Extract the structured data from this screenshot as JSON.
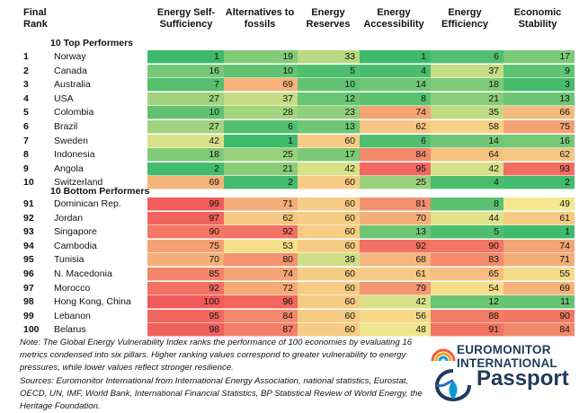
{
  "headers": {
    "rank": "Final\nRank",
    "columns": [
      "Energy Self-\nSufficiency",
      "Alternatives to\nfossils",
      "Energy\nReserves",
      "Energy\nAccessibility",
      "Energy\nEfficiency",
      "Economic\nStability"
    ]
  },
  "groups": {
    "top": "10 Top Performers",
    "bottom": "10 Bottom Performers"
  },
  "chart_data": {
    "type": "table",
    "columns": [
      "Energy Self-Sufficiency",
      "Alternatives to fossils",
      "Energy Reserves",
      "Energy Accessibility",
      "Energy Efficiency",
      "Economic Stability"
    ],
    "top_performers": [
      {
        "rank": "1",
        "country": "Norway",
        "values": [
          1,
          19,
          33,
          1,
          6,
          17
        ]
      },
      {
        "rank": "2",
        "country": "Canada",
        "values": [
          16,
          10,
          5,
          4,
          37,
          9
        ]
      },
      {
        "rank": "3",
        "country": "Australia",
        "values": [
          7,
          69,
          10,
          14,
          18,
          3
        ]
      },
      {
        "rank": "4",
        "country": "USA",
        "values": [
          27,
          37,
          12,
          8,
          21,
          13
        ]
      },
      {
        "rank": "5",
        "country": "Colombia",
        "values": [
          10,
          28,
          23,
          74,
          35,
          66
        ]
      },
      {
        "rank": "6",
        "country": "Brazil",
        "values": [
          27,
          6,
          13,
          62,
          58,
          75
        ]
      },
      {
        "rank": "7",
        "country": "Sweden",
        "values": [
          42,
          1,
          60,
          6,
          14,
          16
        ]
      },
      {
        "rank": "8",
        "country": "Indonesia",
        "values": [
          18,
          25,
          17,
          84,
          64,
          62
        ]
      },
      {
        "rank": "9",
        "country": "Angola",
        "values": [
          2,
          21,
          42,
          95,
          42,
          93
        ]
      },
      {
        "rank": "10",
        "country": "Switzerland",
        "values": [
          69,
          2,
          60,
          25,
          4,
          2
        ]
      }
    ],
    "bottom_performers": [
      {
        "rank": "91",
        "country": "Dominican Rep.",
        "values": [
          99,
          71,
          60,
          81,
          8,
          49
        ]
      },
      {
        "rank": "92",
        "country": "Jordan",
        "values": [
          97,
          62,
          60,
          70,
          44,
          61
        ]
      },
      {
        "rank": "93",
        "country": "Singapore",
        "values": [
          90,
          92,
          60,
          13,
          5,
          1
        ]
      },
      {
        "rank": "94",
        "country": "Cambodia",
        "values": [
          75,
          53,
          60,
          92,
          90,
          74
        ]
      },
      {
        "rank": "95",
        "country": "Tunisia",
        "values": [
          70,
          80,
          39,
          68,
          83,
          71
        ]
      },
      {
        "rank": "96",
        "country": "N. Macedonia",
        "values": [
          85,
          74,
          60,
          61,
          65,
          55
        ]
      },
      {
        "rank": "97",
        "country": "Morocco",
        "values": [
          92,
          72,
          60,
          79,
          54,
          69
        ]
      },
      {
        "rank": "98",
        "country": "Hong Kong, China",
        "values": [
          100,
          96,
          60,
          42,
          12,
          11
        ]
      },
      {
        "rank": "99",
        "country": "Lebanon",
        "values": [
          95,
          84,
          60,
          56,
          88,
          90
        ]
      },
      {
        "rank": "100",
        "country": "Belarus",
        "values": [
          98,
          87,
          60,
          48,
          91,
          84
        ]
      }
    ],
    "colors": {
      "low": "#3fba6b",
      "mid": "#f7e98e",
      "high": "#f15a5a"
    }
  },
  "note": "Note: The Global Energy Vulnerability Index ranks the performance of 100 economies by evaluating 16 metrics condensed into six pillars. Higher ranking values correspond to greater vulnerability to energy pressures, while lower values reflect stronger resilience.",
  "sources": "Sources: Euromonitor International from International Energy Association, national statistics, Eurostat, OECD, UN, IMF, World Bank, International Financial Statistics, BP Statistical Review of World Energy, the Heritage Foundation.",
  "logos": {
    "brand1_line1": "EUROMONITOR",
    "brand1_line2": "INTERNATIONAL",
    "brand2": "Passport",
    "brand_color": "#1f3a5c",
    "arc_colors": [
      "#f15a3a",
      "#f6a21e",
      "#0a9bd7",
      "#2f6fb5"
    ]
  }
}
